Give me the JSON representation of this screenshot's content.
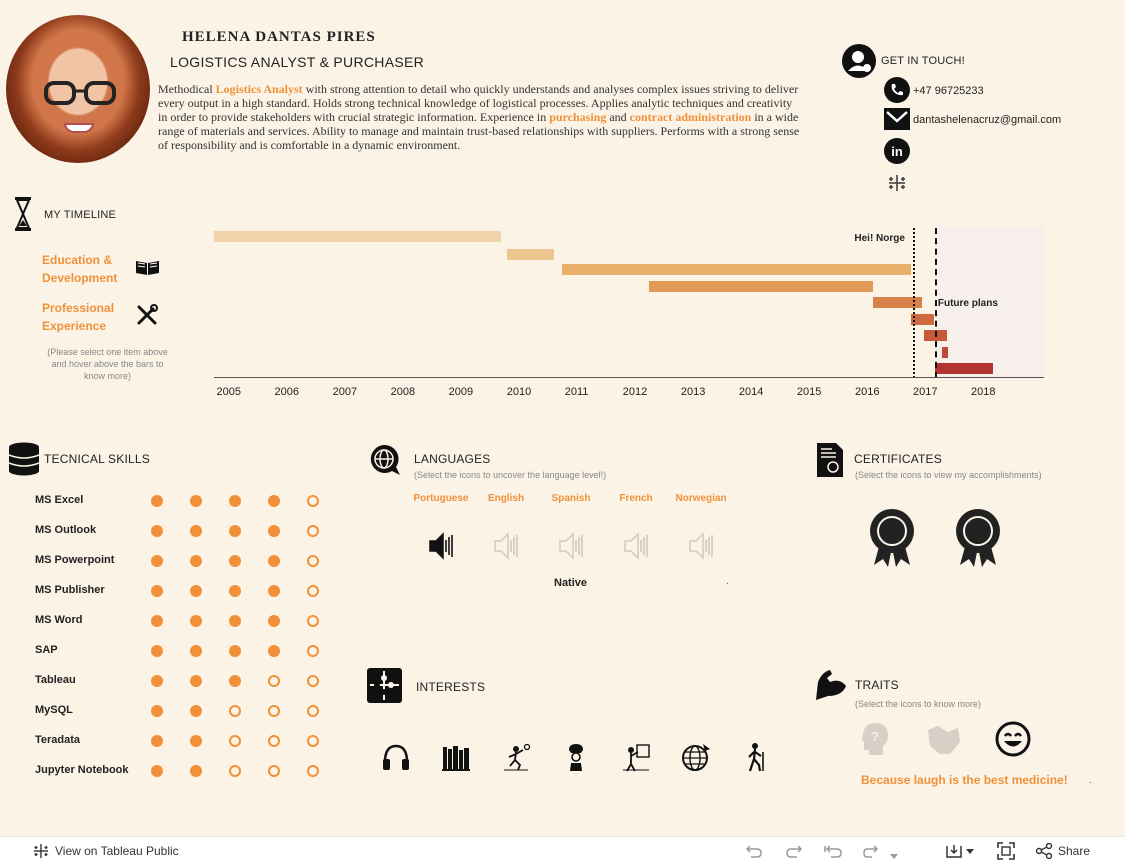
{
  "header": {
    "name": "HELENA  DANTAS  PIRES",
    "role": "LOGISTICS ANALYST & PURCHASER",
    "summary_parts": [
      {
        "t": "Methodical ",
        "hl": false
      },
      {
        "t": "Logistics Analyst",
        "hl": true
      },
      {
        "t": " with strong attention to detail who quickly understands and analyses complex issues striving to deliver every output in a high standard. Holds strong technical knowledge of logistical processes. Applies analytic techniques and creativity in order to provide stakeholders with crucial strategic information. Experience in ",
        "hl": false
      },
      {
        "t": "purchasing",
        "hl": true
      },
      {
        "t": " and ",
        "hl": false
      },
      {
        "t": "contract administration",
        "hl": true
      },
      {
        "t": " in a wide range of materials and services. Ability to manage and maintain trust-based relationships with suppliers. Performs with a strong sense of responsibility and is comfortable in a dynamic environment.",
        "hl": false
      }
    ]
  },
  "contact": {
    "title": "GET IN TOUCH!",
    "phone": "+47 96725233",
    "email": "dantashelenacruz@gmail.com",
    "icons": [
      "person-contact-icon",
      "phone-icon",
      "mail-icon",
      "linkedin-icon",
      "tableau-icon"
    ]
  },
  "timeline": {
    "title": "MY TIMELINE",
    "legend_education": "Education & Development",
    "legend_professional": "Professional Experience",
    "hint": "(Please select one item above and hover above the bars to know more)",
    "marker_norge": "Hei! Norge",
    "marker_future": "Future plans",
    "years": [
      "2005",
      "2006",
      "2007",
      "2008",
      "2009",
      "2010",
      "2011",
      "2012",
      "2013",
      "2014",
      "2015",
      "2016",
      "2017",
      "2018"
    ],
    "x_range": [
      2004.75,
      2019.05
    ],
    "norge_at": 2016.8,
    "future_at": 2017.17,
    "bars": [
      {
        "start": 2004.75,
        "end": 2009.7,
        "color": "#f0d3aa"
      },
      {
        "start": 2009.8,
        "end": 2010.6,
        "color": "#ecc58f"
      },
      {
        "start": 2010.75,
        "end": 2016.75,
        "color": "#e8b06a"
      },
      {
        "start": 2012.25,
        "end": 2016.1,
        "color": "#e09a55"
      },
      {
        "start": 2016.1,
        "end": 2016.95,
        "color": "#d6804a"
      },
      {
        "start": 2016.75,
        "end": 2017.15,
        "color": "#cd6a40"
      },
      {
        "start": 2016.98,
        "end": 2017.38,
        "color": "#c45a3a"
      },
      {
        "start": 2017.3,
        "end": 2017.4,
        "color": "#bb4a36"
      },
      {
        "start": 2017.17,
        "end": 2018.17,
        "color": "#b23432"
      }
    ]
  },
  "skills": {
    "title": "TECNICAL SKILLS",
    "max": 5,
    "items": [
      {
        "name": "MS Excel",
        "level": 4
      },
      {
        "name": "MS Outlook",
        "level": 4
      },
      {
        "name": "MS Powerpoint",
        "level": 4
      },
      {
        "name": "MS Publisher",
        "level": 4
      },
      {
        "name": "MS Word",
        "level": 4
      },
      {
        "name": "SAP",
        "level": 4
      },
      {
        "name": "Tableau",
        "level": 3
      },
      {
        "name": "MySQL",
        "level": 2
      },
      {
        "name": "Teradata",
        "level": 2
      },
      {
        "name": "Jupyter Notebook",
        "level": 2
      }
    ]
  },
  "languages": {
    "title": "LANGUAGES",
    "subtitle": "(Select the icons to uncover the language level!)",
    "items": [
      "Portuguese",
      "English",
      "Spanish",
      "French",
      "Norwegian"
    ],
    "selected": 0,
    "level_text": "Native",
    "dot": "."
  },
  "certificates": {
    "title": "CERTIFICATES",
    "subtitle": "(Select the icons to view my accomplishments)"
  },
  "interests": {
    "title": "INTERESTS",
    "icons": [
      "headphones-icon",
      "books-icon",
      "volleyball-icon",
      "chef-icon",
      "painter-icon",
      "travel-globe-icon",
      "hiking-icon"
    ]
  },
  "traits": {
    "title": "TRAITS",
    "subtitle": "(Select the icons to know more)",
    "caption": "Because laugh is the best medicine!",
    "dot": "."
  },
  "footer": {
    "view_label": "View on Tableau Public",
    "share_label": "Share"
  }
}
